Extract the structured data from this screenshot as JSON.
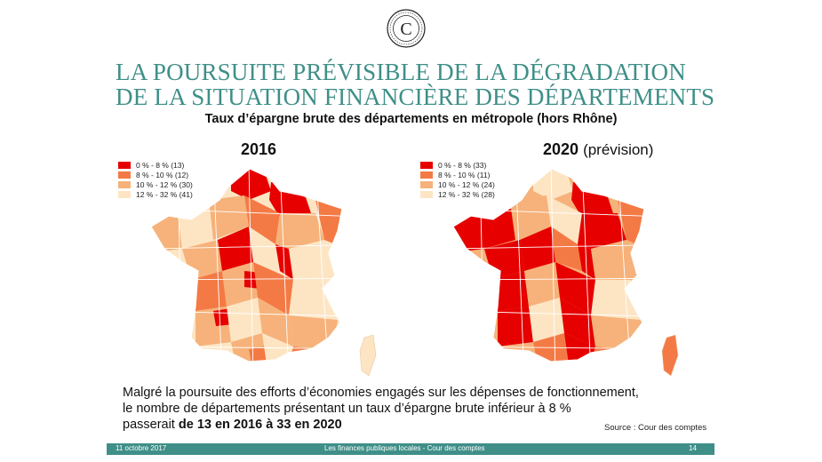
{
  "logo_letter": "C",
  "title_line1": "LA POURSUITE PRÉVISIBLE DE LA DÉGRADATION",
  "title_line2": "DE LA SITUATION FINANCIÈRE DES DÉPARTEMENTS",
  "subtitle": "Taux d’épargne brute des départements en métropole (hors Rhône)",
  "colors": {
    "c1": "#e60000",
    "c2": "#f47a45",
    "c3": "#f6b27a",
    "c4": "#fde5c4",
    "accent": "#3f8f88"
  },
  "map2016": {
    "year": "2016",
    "legend": [
      "0 % - 8 % (13)",
      "8 % - 10 % (12)",
      "10 % - 12 % (30)",
      "12 % - 32 % (41)"
    ]
  },
  "map2020": {
    "year": "2020",
    "note": "(prévision)",
    "legend": [
      "0 % - 8 % (33)",
      "8 % - 10 % (11)",
      "10 % - 12 % (24)",
      "12 % - 32 % (28)"
    ]
  },
  "body": {
    "line1": "Malgré la poursuite des efforts d’économies engagés sur les dépenses de fonctionnement,",
    "line2": "le nombre de départements présentant un taux d’épargne brute inférieur à 8 %",
    "line3_prefix": "passerait ",
    "line3_bold": "de 13 en 2016 à 33 en 2020"
  },
  "source": "Source : Cour des comptes",
  "footer": {
    "date": "11 octobre 2017",
    "center": "Les finances publiques locales - Cour des comptes",
    "page": "14"
  }
}
